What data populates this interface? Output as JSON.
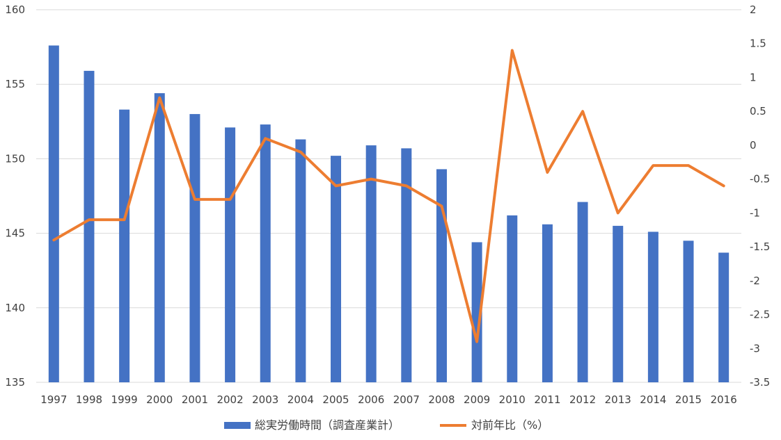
{
  "chart_data": {
    "type": "bar+line",
    "title": "",
    "categories": [
      "1997",
      "1998",
      "1999",
      "2000",
      "2001",
      "2002",
      "2003",
      "2004",
      "2005",
      "2006",
      "2007",
      "2008",
      "2009",
      "2010",
      "2011",
      "2012",
      "2013",
      "2014",
      "2015",
      "2016"
    ],
    "series": [
      {
        "name": "総実労働時間（調査産業計）",
        "type": "bar",
        "axis": "left",
        "color": "#4472C4",
        "values": [
          157.6,
          155.9,
          153.3,
          154.4,
          153.0,
          152.1,
          152.3,
          151.3,
          150.2,
          150.9,
          150.7,
          149.3,
          144.4,
          146.2,
          145.6,
          147.1,
          145.5,
          145.1,
          144.5,
          143.7
        ]
      },
      {
        "name": "対前年比（%）",
        "type": "line",
        "axis": "right",
        "color": "#ED7D31",
        "values": [
          -1.4,
          -1.1,
          -1.1,
          0.7,
          -0.8,
          -0.8,
          0.1,
          -0.1,
          -0.6,
          -0.5,
          -0.6,
          -0.9,
          -2.9,
          1.4,
          -0.4,
          0.5,
          -1.0,
          -0.3,
          -0.3,
          -0.6
        ]
      }
    ],
    "y_left": {
      "min": 135,
      "max": 160,
      "ticks": [
        "135",
        "140",
        "145",
        "150",
        "155",
        "160"
      ]
    },
    "y_right": {
      "min": -3.5,
      "max": 2,
      "ticks": [
        "-3.5",
        "-3",
        "-2.5",
        "-2",
        "-1.5",
        "-1",
        "-0.5",
        "0",
        "0.5",
        "1",
        "1.5",
        "2"
      ]
    },
    "grid": true,
    "legend": {
      "placement": "bottom"
    }
  }
}
